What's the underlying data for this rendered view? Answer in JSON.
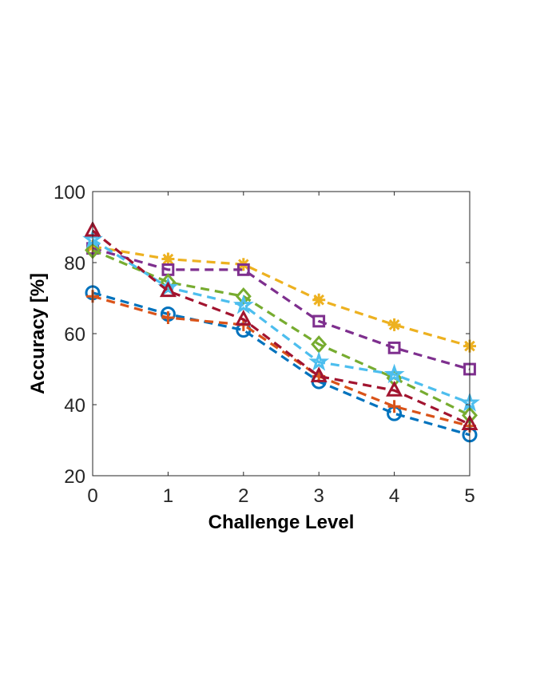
{
  "chart_data": {
    "type": "line",
    "title": "",
    "xlabel": "Challenge Level",
    "ylabel": "Accuracy [%]",
    "xlim": [
      0,
      5
    ],
    "ylim": [
      20,
      100
    ],
    "x": [
      0,
      1,
      2,
      3,
      4,
      5
    ],
    "xticks": [
      "0",
      "1",
      "2",
      "3",
      "4",
      "5"
    ],
    "yticks": [
      "20",
      "40",
      "60",
      "80",
      "100"
    ],
    "grid": false,
    "legend": "none",
    "line_style": "dashed",
    "series": [
      {
        "color": "#0072BD",
        "marker": "circle",
        "values": [
          71.5,
          65.5,
          61.0,
          46.5,
          37.5,
          31.5
        ]
      },
      {
        "color": "#D95319",
        "marker": "plus",
        "values": [
          70.5,
          64.5,
          62.5,
          48.0,
          39.5,
          34.0
        ]
      },
      {
        "color": "#EDB120",
        "marker": "asterisk",
        "values": [
          84.5,
          81.0,
          79.5,
          69.5,
          62.5,
          56.5
        ]
      },
      {
        "color": "#7E2F8E",
        "marker": "square",
        "values": [
          84.0,
          78.0,
          78.0,
          63.5,
          56.0,
          50.0
        ]
      },
      {
        "color": "#77AC30",
        "marker": "diamond",
        "values": [
          83.5,
          74.5,
          70.5,
          57.0,
          47.5,
          37.0
        ]
      },
      {
        "color": "#4DBEEE",
        "marker": "star",
        "values": [
          86.5,
          73.0,
          68.0,
          52.0,
          48.5,
          40.5
        ]
      },
      {
        "color": "#A2142F",
        "marker": "triangle",
        "values": [
          89.0,
          72.0,
          64.0,
          48.0,
          44.0,
          34.5
        ]
      }
    ]
  }
}
